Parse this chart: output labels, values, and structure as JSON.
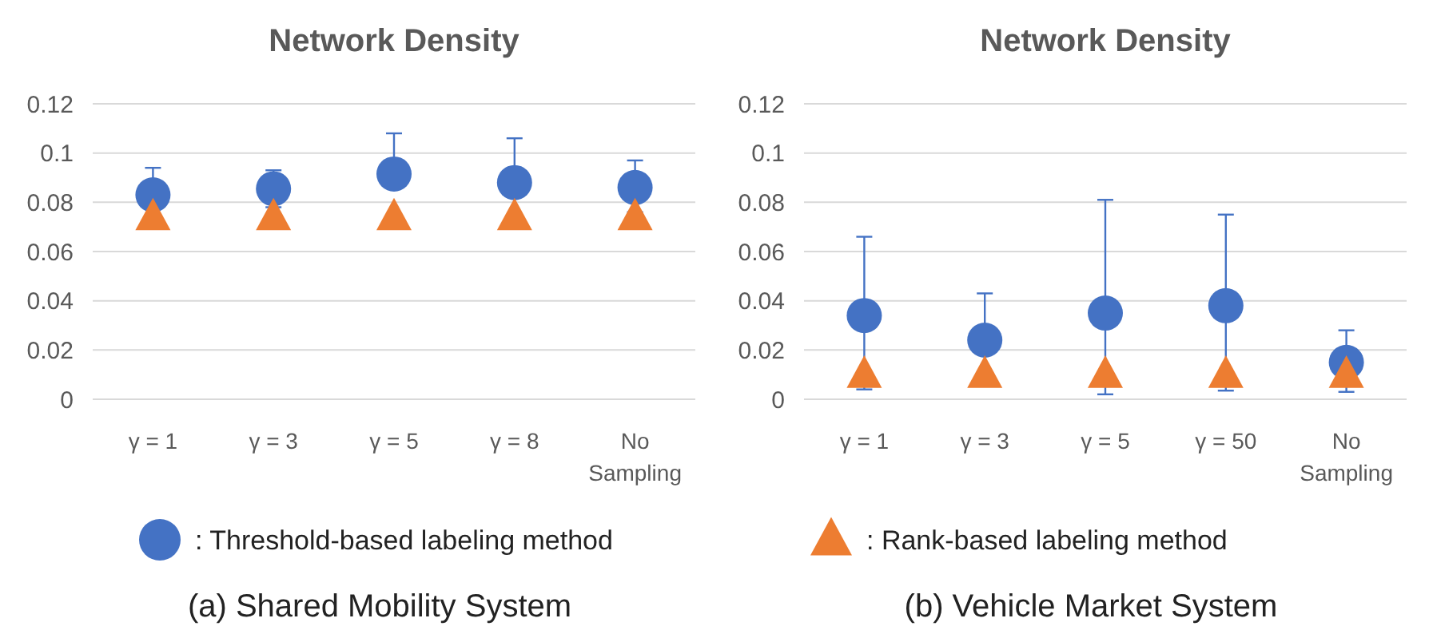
{
  "chart_data": [
    {
      "type": "scatter",
      "title": "Network Density",
      "categories": [
        "γ = 1",
        "γ = 3",
        "γ = 5",
        "γ = 8",
        "No Sampling"
      ],
      "series": [
        {
          "name": ": Threshold-based labeling method",
          "color": "#4472c4",
          "marker": "circle",
          "values": [
            0.083,
            0.0855,
            0.0915,
            0.088,
            0.086
          ],
          "errors": [
            [
              0.083,
              0.094
            ],
            [
              0.078,
              0.093
            ],
            [
              0.0915,
              0.108
            ],
            [
              0.088,
              0.106
            ],
            [
              0.076,
              0.097
            ]
          ]
        },
        {
          "name": ": Rank-based labeling method",
          "color": "#ed7d31",
          "marker": "triangle",
          "values": [
            0.074,
            0.074,
            0.074,
            0.074,
            0.074
          ]
        }
      ],
      "ylim": [
        0,
        0.12
      ],
      "yticks": [
        0,
        0.02,
        0.04,
        0.06,
        0.08,
        0.1,
        0.12
      ],
      "grid": "y",
      "legend": "bottom",
      "annotations": [
        "(a) Shared Mobility System"
      ]
    },
    {
      "type": "scatter",
      "title": "Network Density",
      "categories": [
        "γ = 1",
        "γ = 3",
        "γ = 5",
        "γ = 50",
        "No Sampling"
      ],
      "series": [
        {
          "color": "#4472c4",
          "marker": "circle",
          "values": [
            0.034,
            0.024,
            0.035,
            0.038,
            0.015
          ],
          "errors": [
            [
              0.004,
              0.066
            ],
            [
              0.006,
              0.043
            ],
            [
              0.002,
              0.081
            ],
            [
              0.0035,
              0.075
            ],
            [
              0.003,
              0.028
            ]
          ]
        },
        {
          "color": "#ed7d31",
          "marker": "triangle",
          "values": [
            0.01,
            0.01,
            0.01,
            0.01,
            0.01
          ]
        }
      ],
      "ylim": [
        0,
        0.12
      ],
      "yticks": [
        0,
        0.02,
        0.04,
        0.06,
        0.08,
        0.1,
        0.12
      ],
      "grid": "y",
      "annotations": [
        "(b) Vehicle Market System"
      ]
    }
  ]
}
